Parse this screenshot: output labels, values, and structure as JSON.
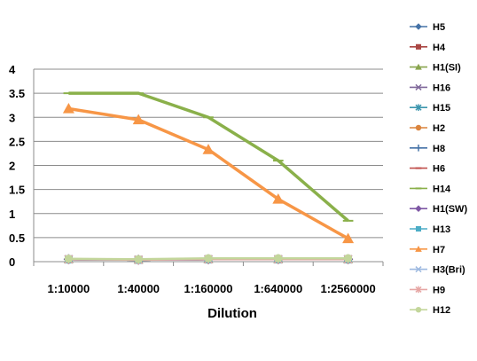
{
  "chart_data": {
    "type": "line",
    "title": "",
    "xlabel": "Dilution",
    "ylabel": "",
    "categories": [
      "1:10000",
      "1:40000",
      "1:160000",
      "1:640000",
      "1:2560000"
    ],
    "ylim": [
      0,
      4
    ],
    "yticks": [
      "0",
      "0.5",
      "1",
      "1.5",
      "2",
      "2.5",
      "3",
      "3.5",
      "4"
    ],
    "grid": "horizontal",
    "legend": "right",
    "series": [
      {
        "name": "H5",
        "color": "#4572A7",
        "marker": "diamond",
        "values": [
          0.05,
          0.04,
          0.05,
          0.05,
          0.05
        ]
      },
      {
        "name": "H4",
        "color": "#AA4643",
        "marker": "square",
        "values": [
          0.05,
          0.04,
          0.05,
          0.05,
          0.05
        ]
      },
      {
        "name": "H1(SI)",
        "color": "#89A54E",
        "marker": "triangle",
        "values": [
          0.05,
          0.04,
          0.05,
          0.05,
          0.05
        ]
      },
      {
        "name": "H16",
        "color": "#80699B",
        "marker": "x",
        "values": [
          0.05,
          0.04,
          0.05,
          0.05,
          0.05
        ]
      },
      {
        "name": "H15",
        "color": "#3D96AE",
        "marker": "star",
        "values": [
          0.05,
          0.04,
          0.05,
          0.05,
          0.05
        ]
      },
      {
        "name": "H2",
        "color": "#DB843D",
        "marker": "circle",
        "values": [
          0.05,
          0.04,
          0.05,
          0.05,
          0.05
        ]
      },
      {
        "name": "H8",
        "color": "#4572A7",
        "marker": "plus",
        "values": [
          0.05,
          0.04,
          0.05,
          0.05,
          0.05
        ]
      },
      {
        "name": "H6",
        "color": "#C0504D",
        "marker": "dash",
        "values": [
          0.05,
          0.04,
          0.05,
          0.05,
          0.05
        ]
      },
      {
        "name": "H14",
        "color": "#8AB04A",
        "marker": "dash",
        "values": [
          3.5,
          3.5,
          3.0,
          2.1,
          0.85
        ]
      },
      {
        "name": "H1(SW)",
        "color": "#7E57A4",
        "marker": "diamond",
        "values": [
          0.05,
          0.04,
          0.05,
          0.05,
          0.05
        ]
      },
      {
        "name": "H13",
        "color": "#4BACC6",
        "marker": "square",
        "values": [
          0.05,
          0.04,
          0.05,
          0.05,
          0.05
        ]
      },
      {
        "name": "H7",
        "color": "#F79646",
        "marker": "triangle",
        "values": [
          3.18,
          2.95,
          2.33,
          1.3,
          0.48
        ]
      },
      {
        "name": "H3(Bri)",
        "color": "#9DB9E0",
        "marker": "x",
        "values": [
          0.05,
          0.04,
          0.05,
          0.05,
          0.05
        ]
      },
      {
        "name": "H9",
        "color": "#E6A6A4",
        "marker": "star",
        "values": [
          0.05,
          0.04,
          0.05,
          0.05,
          0.05
        ]
      },
      {
        "name": "H12",
        "color": "#C3D69B",
        "marker": "circle",
        "values": [
          0.06,
          0.05,
          0.07,
          0.07,
          0.07
        ]
      }
    ]
  }
}
